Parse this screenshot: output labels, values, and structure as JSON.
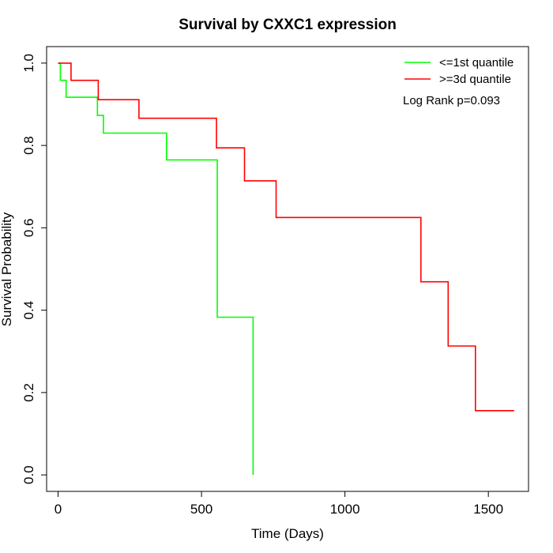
{
  "chart_data": {
    "type": "line",
    "title": "Survival by CXXC1 expression",
    "xlabel": "Time (Days)",
    "ylabel": "Survival Probability",
    "xlim": [
      -40,
      1640
    ],
    "ylim": [
      -0.04,
      1.04
    ],
    "x_ticks": [
      0,
      500,
      1000,
      1500
    ],
    "y_ticks": [
      0.0,
      0.2,
      0.4,
      0.6,
      0.8,
      1.0
    ],
    "x_tick_labels": [
      "0",
      "500",
      "1000",
      "1500"
    ],
    "y_tick_labels": [
      "0.0",
      "0.2",
      "0.4",
      "0.6",
      "0.8",
      "1.0"
    ],
    "grid": false,
    "legend_position": "top-right",
    "annotation": "Log Rank p=0.093",
    "series": [
      {
        "name": "<=1st quantile",
        "color": "#00ff00",
        "step": true,
        "points": [
          [
            0,
            1.0
          ],
          [
            8,
            0.958
          ],
          [
            28,
            0.917
          ],
          [
            137,
            0.873
          ],
          [
            158,
            0.83
          ],
          [
            378,
            0.765
          ],
          [
            555,
            0.383
          ],
          [
            680,
            0.0
          ]
        ]
      },
      {
        "name": ">=3d quantile",
        "color": "#ff0000",
        "step": true,
        "points": [
          [
            0,
            1.0
          ],
          [
            45,
            0.958
          ],
          [
            140,
            0.911
          ],
          [
            282,
            0.866
          ],
          [
            552,
            0.794
          ],
          [
            650,
            0.714
          ],
          [
            760,
            0.625
          ],
          [
            1265,
            0.469
          ],
          [
            1360,
            0.313
          ],
          [
            1455,
            0.156
          ],
          [
            1590,
            0.156
          ]
        ]
      }
    ]
  }
}
